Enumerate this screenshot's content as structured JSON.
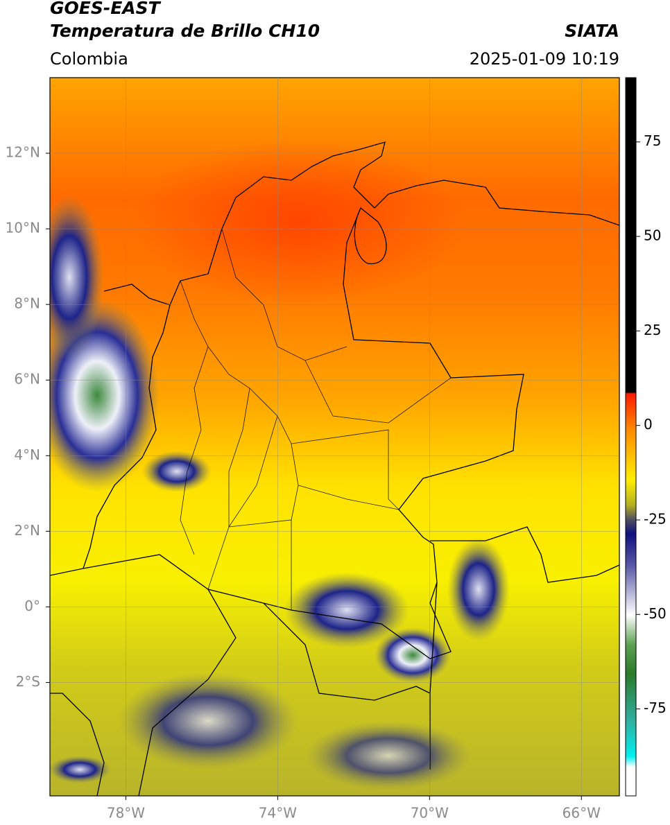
{
  "header": {
    "title": "GOES-EAST",
    "subtitle": "Temperatura de Brillo CH10",
    "agency": "SIATA",
    "region": "Colombia",
    "timestamp": "2025-01-09 10:19"
  },
  "map": {
    "lonlim": [
      -80,
      -65
    ],
    "latlim": [
      -5,
      14
    ],
    "grid": true,
    "xticks": [
      {
        "value": -78,
        "label": "78°W"
      },
      {
        "value": -74,
        "label": "74°W"
      },
      {
        "value": -70,
        "label": "70°W"
      },
      {
        "value": -66,
        "label": "66°W"
      }
    ],
    "yticks": [
      {
        "value": 12,
        "label": "12°N"
      },
      {
        "value": 10,
        "label": "10°N"
      },
      {
        "value": 8,
        "label": "8°N"
      },
      {
        "value": 6,
        "label": "6°N"
      },
      {
        "value": 4,
        "label": "4°N"
      },
      {
        "value": 2,
        "label": "2°N"
      },
      {
        "value": 0,
        "label": "0°"
      },
      {
        "value": -2,
        "label": "2°S"
      }
    ]
  },
  "colorbar": {
    "lim": [
      -98,
      92
    ],
    "ticks": [
      75,
      50,
      25,
      0,
      -25,
      -50,
      -75
    ]
  }
}
